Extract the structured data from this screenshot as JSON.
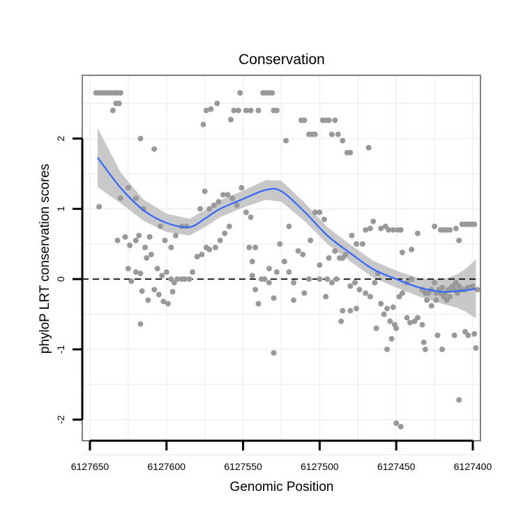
{
  "chart_data": {
    "type": "scatter",
    "title": "Conservation",
    "xlabel": "Genomic Position",
    "ylabel": "phyloP LRT conservation scores",
    "xlim": [
      6127655,
      6127395
    ],
    "ylim": [
      -2.3,
      2.9
    ],
    "x_reversed": true,
    "xticks": [
      6127650,
      6127600,
      6127550,
      6127500,
      6127450,
      6127400
    ],
    "xtick_labels": [
      "6127650",
      "6127600",
      "6127550",
      "6127500",
      "6127450",
      "6127400"
    ],
    "yticks": [
      -2,
      -1,
      0,
      1,
      2
    ],
    "ytick_labels": [
      "-2",
      "-1",
      "0",
      "1",
      "2"
    ],
    "grid": true,
    "colors": {
      "points": "#999999",
      "smooth_line": "#3366ff",
      "confidence_band": "#c8c8c8",
      "reference_line": "#000000",
      "panel_border": "#808080",
      "grid": "#f0f0f0"
    },
    "reference_line": {
      "y": 0,
      "style": "dashed"
    },
    "points": [
      [
        6127646,
        2.65
      ],
      [
        6127644,
        2.65
      ],
      [
        6127642,
        2.65
      ],
      [
        6127640,
        2.65
      ],
      [
        6127638,
        2.65
      ],
      [
        6127636,
        2.65
      ],
      [
        6127634,
        2.65
      ],
      [
        6127632,
        2.65
      ],
      [
        6127630,
        2.65
      ],
      [
        6127635,
        2.4
      ],
      [
        6127633,
        2.5
      ],
      [
        6127631,
        2.5
      ],
      [
        6127644,
        1.03
      ],
      [
        6127630,
        1.15
      ],
      [
        6127625,
        1.3
      ],
      [
        6127620,
        1.15
      ],
      [
        6127615,
        1.0
      ],
      [
        6127608,
        1.85
      ],
      [
        6127617,
        2.0
      ],
      [
        6127632,
        0.55
      ],
      [
        6127627,
        0.6
      ],
      [
        6127624,
        0.48
      ],
      [
        6127620,
        0.55
      ],
      [
        6127618,
        0.62
      ],
      [
        6127614,
        0.45
      ],
      [
        6127611,
        0.6
      ],
      [
        6127604,
        0.75
      ],
      [
        6127601,
        0.55
      ],
      [
        6127597,
        0.45
      ],
      [
        6127594,
        0.62
      ],
      [
        6127590,
        0.75
      ],
      [
        6127587,
        0.75
      ],
      [
        6127625,
        0.15
      ],
      [
        6127623,
        -0.03
      ],
      [
        6127620,
        0.1
      ],
      [
        6127617,
        0.08
      ],
      [
        6127613,
        0.3
      ],
      [
        6127610,
        0.35
      ],
      [
        6127606,
        0.15
      ],
      [
        6127603,
        0.05
      ],
      [
        6127600,
        0.1
      ],
      [
        6127597,
        0.0
      ],
      [
        6127595,
        -0.05
      ],
      [
        6127593,
        0.0
      ],
      [
        6127616,
        -0.17
      ],
      [
        6127612,
        -0.3
      ],
      [
        6127608,
        -0.15
      ],
      [
        6127605,
        -0.22
      ],
      [
        6127602,
        -0.32
      ],
      [
        6127599,
        -0.35
      ],
      [
        6127596,
        -0.18
      ],
      [
        6127617,
        -0.64
      ],
      [
        6127590,
        0.0
      ],
      [
        6127588,
        0.0
      ],
      [
        6127585,
        0.0
      ],
      [
        6127583,
        0.1
      ],
      [
        6127580,
        0.32
      ],
      [
        6127577,
        0.35
      ],
      [
        6127574,
        0.45
      ],
      [
        6127572,
        0.42
      ],
      [
        6127568,
        0.45
      ],
      [
        6127565,
        0.55
      ],
      [
        6127562,
        0.65
      ],
      [
        6127559,
        0.75
      ],
      [
        6127578,
        1.0
      ],
      [
        6127575,
        1.25
      ],
      [
        6127572,
        1.0
      ],
      [
        6127569,
        1.05
      ],
      [
        6127566,
        1.1
      ],
      [
        6127563,
        1.2
      ],
      [
        6127560,
        1.2
      ],
      [
        6127557,
        1.15
      ],
      [
        6127554,
        1.05
      ],
      [
        6127551,
        1.3
      ],
      [
        6127548,
        0.95
      ],
      [
        6127545,
        0.88
      ],
      [
        6127576,
        2.2
      ],
      [
        6127574,
        2.4
      ],
      [
        6127571,
        2.42
      ],
      [
        6127567,
        2.5
      ],
      [
        6127558,
        2.27
      ],
      [
        6127556,
        2.4
      ],
      [
        6127553,
        2.4
      ],
      [
        6127552,
        2.65
      ],
      [
        6127548,
        2.4
      ],
      [
        6127545,
        2.4
      ],
      [
        6127540,
        2.4
      ],
      [
        6127537,
        2.65
      ],
      [
        6127535,
        2.65
      ],
      [
        6127533,
        2.65
      ],
      [
        6127531,
        2.65
      ],
      [
        6127530,
        2.4
      ],
      [
        6127528,
        2.4
      ],
      [
        6127522,
        1.97
      ],
      [
        6127512,
        2.26
      ],
      [
        6127510,
        2.26
      ],
      [
        6127507,
        2.06
      ],
      [
        6127505,
        2.06
      ],
      [
        6127503,
        2.06
      ],
      [
        6127498,
        2.26
      ],
      [
        6127496,
        2.26
      ],
      [
        6127494,
        2.26
      ],
      [
        6127492,
        2.06
      ],
      [
        6127490,
        2.26
      ],
      [
        6127488,
        2.06
      ],
      [
        6127485,
        1.97
      ],
      [
        6127482,
        1.8
      ],
      [
        6127480,
        1.8
      ],
      [
        6127468,
        1.87
      ],
      [
        6127546,
        0.45
      ],
      [
        6127544,
        0.25
      ],
      [
        6127542,
        0.45
      ],
      [
        6127538,
        0.0
      ],
      [
        6127536,
        0.0
      ],
      [
        6127533,
        0.15
      ],
      [
        6127528,
        0.1
      ],
      [
        6127526,
        0.5
      ],
      [
        6127523,
        0.25
      ],
      [
        6127520,
        0.75
      ],
      [
        6127544,
        0.05
      ],
      [
        6127542,
        -0.15
      ],
      [
        6127540,
        -0.35
      ],
      [
        6127533,
        -0.05
      ],
      [
        6127530,
        -0.27
      ],
      [
        6127520,
        0.1
      ],
      [
        6127517,
        -0.05
      ],
      [
        6127514,
        0.4
      ],
      [
        6127511,
        0.35
      ],
      [
        6127506,
        0.55
      ],
      [
        6127503,
        0.95
      ],
      [
        6127500,
        0.95
      ],
      [
        6127497,
        0.85
      ],
      [
        6127494,
        0.3
      ],
      [
        6127490,
        0.4
      ],
      [
        6127487,
        0.3
      ],
      [
        6127485,
        0.3
      ],
      [
        6127483,
        0.35
      ],
      [
        6127479,
        0.62
      ],
      [
        6127476,
        0.5
      ],
      [
        6127472,
        0.5
      ],
      [
        6127470,
        0.7
      ],
      [
        6127467,
        0.72
      ],
      [
        6127500,
        0.2
      ],
      [
        6127495,
        0.0
      ],
      [
        6127492,
        -0.05
      ],
      [
        6127489,
        0.0
      ],
      [
        6127480,
        -0.1
      ],
      [
        6127477,
        -0.05
      ],
      [
        6127474,
        -0.15
      ],
      [
        6127470,
        -0.2
      ],
      [
        6127467,
        -0.25
      ],
      [
        6127464,
        -0.05
      ],
      [
        6127485,
        -0.45
      ],
      [
        6127480,
        -0.45
      ],
      [
        6127476,
        -0.42
      ],
      [
        6127517,
        -0.3
      ],
      [
        6127510,
        -0.2
      ],
      [
        6127507,
        0.0
      ],
      [
        6127500,
        0.0
      ],
      [
        6127496,
        -0.25
      ],
      [
        6127530,
        -1.05
      ],
      [
        6127486,
        -0.6
      ],
      [
        6127462,
        0.08
      ],
      [
        6127460,
        -0.35
      ],
      [
        6127458,
        -0.5
      ],
      [
        6127456,
        -0.42
      ],
      [
        6127454,
        -0.6
      ],
      [
        6127452,
        -0.4
      ],
      [
        6127450,
        -0.7
      ],
      [
        6127448,
        -0.25
      ],
      [
        6127446,
        -0.2
      ],
      [
        6127443,
        -0.05
      ],
      [
        6127440,
        0.0
      ],
      [
        6127465,
        0.82
      ],
      [
        6127460,
        0.72
      ],
      [
        6127457,
        0.75
      ],
      [
        6127455,
        0.7
      ],
      [
        6127452,
        0.7
      ],
      [
        6127449,
        0.7
      ],
      [
        6127447,
        0.7
      ],
      [
        6127463,
        -0.7
      ],
      [
        6127456,
        -1.0
      ],
      [
        6127453,
        -0.85
      ],
      [
        6127451,
        -0.65
      ],
      [
        6127446,
        0.38
      ],
      [
        6127443,
        -0.55
      ],
      [
        6127441,
        -0.62
      ],
      [
        6127438,
        -0.6
      ],
      [
        6127436,
        -0.55
      ],
      [
        6127433,
        -0.65
      ],
      [
        6127440,
        0.42
      ],
      [
        6127433,
        -0.15
      ],
      [
        6127431,
        -0.2
      ],
      [
        6127429,
        -0.2
      ],
      [
        6127427,
        -0.15
      ],
      [
        6127424,
        -0.2
      ],
      [
        6127422,
        -0.15
      ],
      [
        6127420,
        -0.12
      ],
      [
        6127418,
        -0.2
      ],
      [
        6127416,
        -0.15
      ],
      [
        6127414,
        -0.12
      ],
      [
        6127412,
        -0.15
      ],
      [
        6127410,
        -0.2
      ],
      [
        6127408,
        -0.15
      ],
      [
        6127406,
        -0.15
      ],
      [
        6127436,
        0.65
      ],
      [
        6127430,
        -0.3
      ],
      [
        6127427,
        -0.38
      ],
      [
        6127425,
        -0.05
      ],
      [
        6127423,
        -0.8
      ],
      [
        6127421,
        -0.2
      ],
      [
        6127419,
        -0.25
      ],
      [
        6127417,
        -0.3
      ],
      [
        6127415,
        -0.25
      ],
      [
        6127413,
        -0.1
      ],
      [
        6127411,
        -0.05
      ],
      [
        6127409,
        -0.1
      ],
      [
        6127407,
        -0.15
      ],
      [
        6127405,
        -0.15
      ],
      [
        6127403,
        -0.12
      ],
      [
        6127432,
        -0.9
      ],
      [
        6127431,
        -1.0
      ],
      [
        6127424,
        -0.3
      ],
      [
        6127420,
        -1.0
      ],
      [
        6127425,
        0.75
      ],
      [
        6127421,
        0.7
      ],
      [
        6127419,
        0.7
      ],
      [
        6127417,
        0.7
      ],
      [
        6127415,
        0.7
      ],
      [
        6127411,
        0.72
      ],
      [
        6127409,
        0.55
      ],
      [
        6127407,
        0.78
      ],
      [
        6127405,
        0.78
      ],
      [
        6127403,
        0.78
      ],
      [
        6127401,
        0.78
      ],
      [
        6127399,
        0.78
      ],
      [
        6127412,
        -0.8
      ],
      [
        6127405,
        -0.75
      ],
      [
        6127403,
        -0.8
      ],
      [
        6127399,
        -0.78
      ],
      [
        6127398,
        -0.98
      ],
      [
        6127400,
        -0.1
      ],
      [
        6127397,
        -0.15
      ],
      [
        6127409,
        -1.72
      ],
      [
        6127450,
        -2.05
      ],
      [
        6127447,
        -2.1
      ]
    ],
    "smooth": {
      "x": [
        6127645,
        6127630,
        6127615,
        6127600,
        6127585,
        6127575,
        6127565,
        6127550,
        6127535,
        6127525,
        6127510,
        6127495,
        6127480,
        6127465,
        6127450,
        6127435,
        6127420,
        6127410,
        6127405,
        6127398
      ],
      "y": [
        1.73,
        1.3,
        0.98,
        0.8,
        0.74,
        0.86,
        1.0,
        1.14,
        1.27,
        1.25,
        0.96,
        0.62,
        0.37,
        0.14,
        0.0,
        -0.12,
        -0.18,
        -0.17,
        -0.16,
        -0.14
      ],
      "se": [
        0.42,
        0.22,
        0.15,
        0.13,
        0.12,
        0.12,
        0.12,
        0.12,
        0.14,
        0.15,
        0.13,
        0.12,
        0.12,
        0.12,
        0.12,
        0.13,
        0.17,
        0.24,
        0.3,
        0.42
      ]
    }
  }
}
